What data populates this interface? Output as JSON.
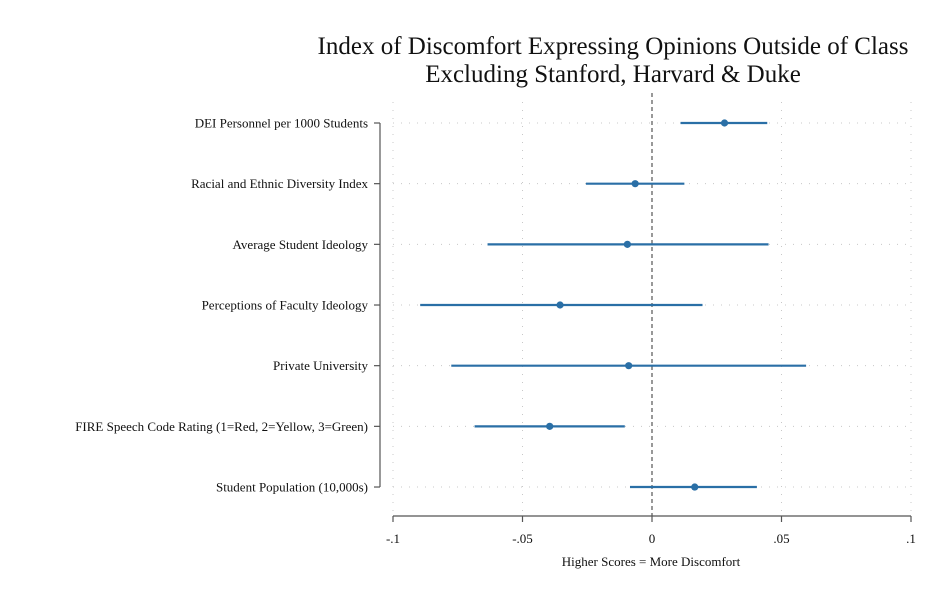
{
  "chart_data": {
    "type": "coefficient-plot",
    "title": "Index of Discomfort Expressing Opinions Outside of Class",
    "subtitle": "Excluding Stanford, Harvard & Duke",
    "xlabel": "Higher Scores = More Discomfort",
    "ylabel": "",
    "xlim": [
      -0.1,
      0.1
    ],
    "xticks": [
      -0.1,
      -0.05,
      0,
      0.05,
      0.1
    ],
    "xtick_labels": [
      "-.1",
      "-.05",
      "0",
      ".05",
      ".1"
    ],
    "reference_line": 0,
    "grid": true,
    "colors": {
      "marker": "#2a6fa6",
      "ci": "#2a6fa6",
      "axis": "#555555",
      "grid": "#c8c8c8",
      "ref": "#555555"
    },
    "categories": [
      "DEI Personnel per 1000 Students",
      "Racial and Ethnic Diversity Index",
      "Average Student Ideology",
      "Perceptions of Faculty Ideology",
      "Private University",
      "FIRE Speech Code Rating (1=Red, 2=Yellow, 3=Green)",
      "Student Population (10,000s)"
    ],
    "estimates": [
      0.028,
      -0.0065,
      -0.0095,
      -0.0355,
      -0.009,
      -0.0395,
      0.0165
    ],
    "ci_low": [
      0.011,
      -0.0255,
      -0.0635,
      -0.0895,
      -0.0775,
      -0.0685,
      -0.0085
    ],
    "ci_high": [
      0.0445,
      0.0125,
      0.045,
      0.0195,
      0.0595,
      -0.0105,
      0.0405
    ]
  }
}
